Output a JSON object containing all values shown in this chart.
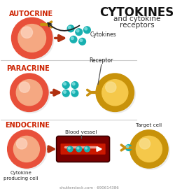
{
  "title_line1": "CYTOKINES",
  "title_line2": "and cytokine",
  "title_line3": "receptors",
  "label_autocrine": "AUTOCRINE",
  "label_paracrine": "PARACRINE",
  "label_endocrine": "ENDOCRINE",
  "label_cytokines": "Cytokines",
  "label_receptor": "Receptor",
  "label_blood_vessel": "Blood vessel",
  "label_target_cell": "Target cell",
  "label_cytokine_cell": "Cytokine\nproducing cell",
  "label_shutterstock": "shutterstock.com · 690614386",
  "bg_color": "#ffffff",
  "cell_red_outer": "#e8503a",
  "cell_red_inner": "#f5a882",
  "cell_red_highlight": "#fdd5c0",
  "cell_yellow_outer": "#c8920a",
  "cell_yellow_inner": "#f5c84a",
  "cell_yellow_highlight": "#f8e090",
  "cytokine_color": "#18b0b0",
  "cytokine_highlight": "#80e0e0",
  "arrow_color": "#b03010",
  "receptor_color": "#c89010",
  "blood_vessel_dark": "#7a0000",
  "blood_vessel_red": "#cc1800",
  "label_color_red": "#cc2200",
  "line_color": "#555555"
}
